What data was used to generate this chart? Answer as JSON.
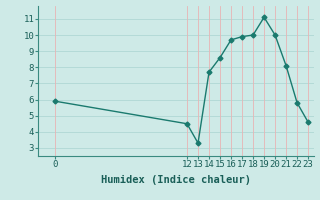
{
  "x": [
    0,
    12,
    13,
    14,
    15,
    16,
    17,
    18,
    19,
    20,
    21,
    22,
    23
  ],
  "y": [
    5.9,
    4.5,
    3.3,
    7.7,
    8.6,
    9.7,
    9.9,
    10.0,
    11.1,
    10.0,
    8.1,
    5.8,
    4.6
  ],
  "line_color": "#1a7a6e",
  "marker": "D",
  "marker_size": 2.5,
  "bg_color": "#ceeae7",
  "hgrid_color": "#b0d8d4",
  "vgrid_color": "#e8b4b4",
  "xlabel": "Humidex (Indice chaleur)",
  "xlabel_fontsize": 7.5,
  "ylim": [
    2.5,
    11.8
  ],
  "yticks": [
    3,
    4,
    5,
    6,
    7,
    8,
    9,
    10,
    11
  ],
  "xlim": [
    -1.5,
    23.5
  ],
  "line_width": 1.0,
  "font_color": "#1a5f58",
  "tick_fontsize": 6.5
}
